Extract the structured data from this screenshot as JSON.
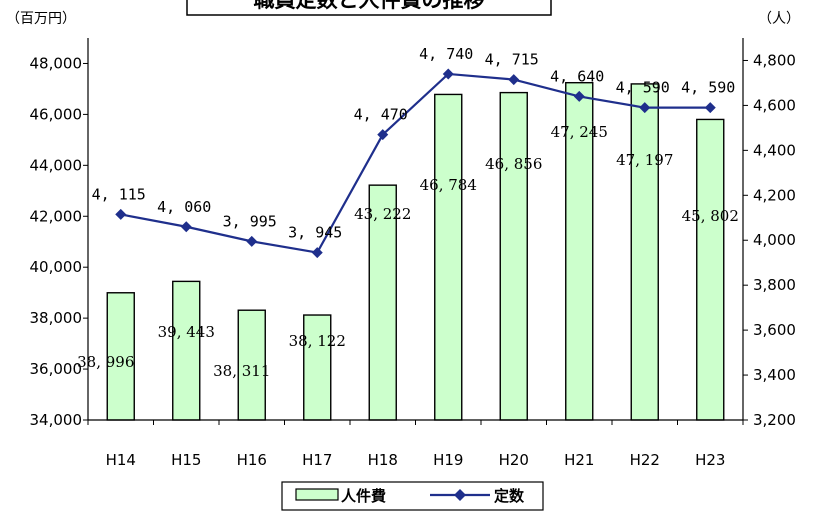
{
  "chart_data": {
    "type": "bar",
    "title": "職員定数と人件費の推移",
    "categories": [
      "H14",
      "H15",
      "H16",
      "H17",
      "H18",
      "H19",
      "H20",
      "H21",
      "H22",
      "H23"
    ],
    "series": [
      {
        "name": "人件費",
        "type": "bar",
        "axis": "left",
        "color": "#ccffcc",
        "values": [
          38996,
          39443,
          38311,
          38122,
          43222,
          46784,
          46856,
          47245,
          47197,
          45802
        ],
        "labels": [
          "38, 996",
          "39, 443",
          "38, 311",
          "38, 122",
          "43, 222",
          "46, 784",
          "46, 856",
          "47, 245",
          "47, 197",
          "45, 802"
        ]
      },
      {
        "name": "定数",
        "type": "line",
        "axis": "right",
        "color": "#1f2f8c",
        "marker": "diamond",
        "values": [
          4115,
          4060,
          3995,
          3945,
          4470,
          4740,
          4715,
          4640,
          4590,
          4590
        ],
        "labels": [
          "4, 115",
          "4, 060",
          "3, 995",
          "3, 945",
          "4, 470",
          "4, 740",
          "4, 715",
          "4, 640",
          "4, 590",
          "4, 590"
        ]
      }
    ],
    "y_left": {
      "unit": "（百万円）",
      "ylim": [
        34000,
        49000
      ],
      "ticks": [
        "34,000",
        "36,000",
        "38,000",
        "40,000",
        "42,000",
        "44,000",
        "46,000",
        "48,000"
      ],
      "tick_values": [
        34000,
        36000,
        38000,
        40000,
        42000,
        44000,
        46000,
        48000
      ]
    },
    "y_right": {
      "unit": "（人）",
      "ylim": [
        3200,
        4900
      ],
      "ticks": [
        "3,200",
        "3,400",
        "3,600",
        "3,800",
        "4,000",
        "4,200",
        "4,400",
        "4,600",
        "4,800"
      ],
      "tick_values": [
        3200,
        3400,
        3600,
        3800,
        4000,
        4200,
        4400,
        4600,
        4800
      ]
    },
    "grid": false,
    "legend": {
      "position": "bottom",
      "items": [
        "人件費",
        "定数"
      ]
    }
  }
}
